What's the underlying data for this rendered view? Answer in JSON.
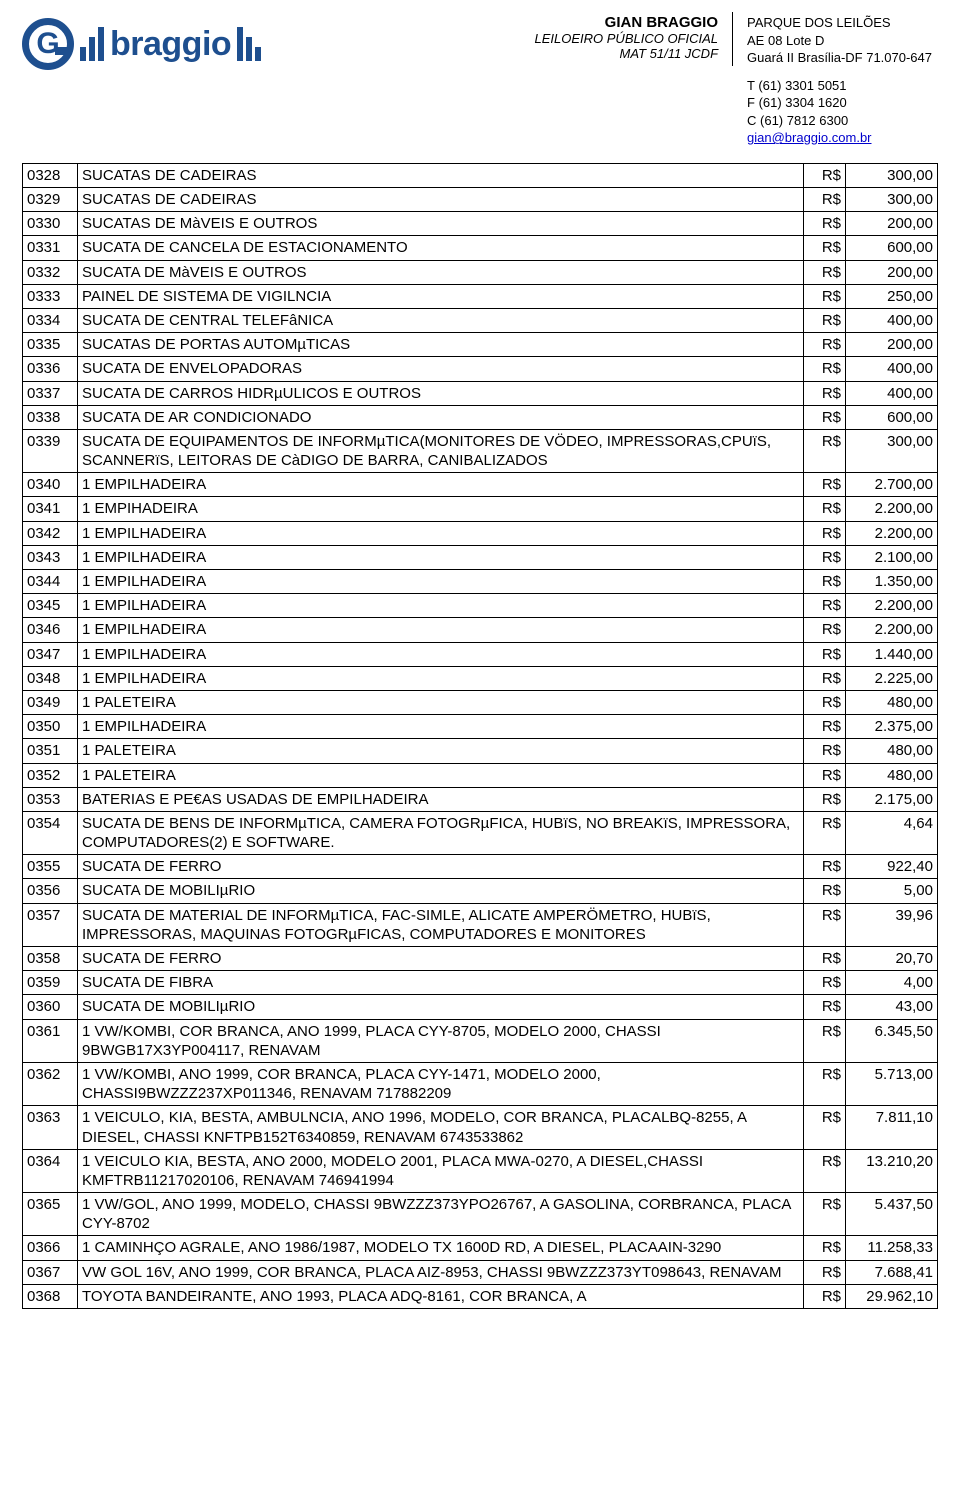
{
  "header": {
    "logo_text": "braggio",
    "center": {
      "l1": "GIAN BRAGGIO",
      "l2": "LEILOEIRO PÚBLICO OFICIAL",
      "l3": "MAT  51/11  JCDF"
    },
    "right": {
      "addr1": "PARQUE DOS LEILÕES",
      "addr2": "AE 08 Lote D",
      "addr3": "Guará II Brasília-DF 71.070-647",
      "tel": "T (61) 3301 5051",
      "fax": "F (61) 3304 1620",
      "cel": "C (61) 7812 6300",
      "email": "gian@braggio.com.br"
    }
  },
  "table": {
    "currency": "R$",
    "rows": [
      {
        "code": "0328",
        "desc": "SUCATAS DE CADEIRAS",
        "val": "300,00"
      },
      {
        "code": "0329",
        "desc": "SUCATAS DE CADEIRAS",
        "val": "300,00"
      },
      {
        "code": "0330",
        "desc": "SUCATAS DE MàVEIS E OUTROS",
        "val": "200,00"
      },
      {
        "code": "0331",
        "desc": "SUCATA DE CANCELA DE ESTACIONAMENTO",
        "val": "600,00"
      },
      {
        "code": "0332",
        "desc": "SUCATA DE MàVEIS E OUTROS",
        "val": "200,00"
      },
      {
        "code": "0333",
        "desc": "PAINEL DE SISTEMA DE VIGILNCIA",
        "val": "250,00"
      },
      {
        "code": "0334",
        "desc": "SUCATA DE CENTRAL TELEFâNICA",
        "val": "400,00"
      },
      {
        "code": "0335",
        "desc": "SUCATAS DE PORTAS AUTOMµTICAS",
        "val": "200,00"
      },
      {
        "code": "0336",
        "desc": "SUCATA DE ENVELOPADORAS",
        "val": "400,00"
      },
      {
        "code": "0337",
        "desc": "SUCATA DE CARROS HIDRµULICOS E OUTROS",
        "val": "400,00"
      },
      {
        "code": "0338",
        "desc": "SUCATA DE AR CONDICIONADO",
        "val": "600,00"
      },
      {
        "code": "0339",
        "desc": "SUCATA DE EQUIPAMENTOS DE INFORMµTICA(MONITORES DE VÖDEO, IMPRESSORAS,CPUïS, SCANNERïS, LEITORAS DE CàDIGO DE BARRA, CANIBALIZADOS",
        "val": "300,00"
      },
      {
        "code": "0340",
        "desc": "1 EMPILHADEIRA",
        "val": "2.700,00"
      },
      {
        "code": "0341",
        "desc": "1 EMPIHADEIRA",
        "val": "2.200,00"
      },
      {
        "code": "0342",
        "desc": "1 EMPILHADEIRA",
        "val": "2.200,00"
      },
      {
        "code": "0343",
        "desc": "1 EMPILHADEIRA",
        "val": "2.100,00"
      },
      {
        "code": "0344",
        "desc": "1 EMPILHADEIRA",
        "val": "1.350,00"
      },
      {
        "code": "0345",
        "desc": "1 EMPILHADEIRA",
        "val": "2.200,00"
      },
      {
        "code": "0346",
        "desc": "1 EMPILHADEIRA",
        "val": "2.200,00"
      },
      {
        "code": "0347",
        "desc": "1 EMPILHADEIRA",
        "val": "1.440,00"
      },
      {
        "code": "0348",
        "desc": "1 EMPILHADEIRA",
        "val": "2.225,00"
      },
      {
        "code": "0349",
        "desc": "1 PALETEIRA",
        "val": "480,00"
      },
      {
        "code": "0350",
        "desc": "1 EMPILHADEIRA",
        "val": "2.375,00"
      },
      {
        "code": "0351",
        "desc": "1 PALETEIRA",
        "val": "480,00"
      },
      {
        "code": "0352",
        "desc": "1 PALETEIRA",
        "val": "480,00"
      },
      {
        "code": "0353",
        "desc": "BATERIAS E PE€AS USADAS DE EMPILHADEIRA",
        "val": "2.175,00"
      },
      {
        "code": "0354",
        "desc": "SUCATA DE BENS DE INFORMµTICA, CAMERA FOTOGRµFICA, HUBïS, NO BREAKïS, IMPRESSORA, COMPUTADORES(2) E SOFTWARE.",
        "val": "4,64"
      },
      {
        "code": "0355",
        "desc": "SUCATA DE FERRO",
        "val": "922,40"
      },
      {
        "code": "0356",
        "desc": "SUCATA DE MOBILIµRIO",
        "val": "5,00"
      },
      {
        "code": "0357",
        "desc": "SUCATA DE MATERIAL DE INFORMµTICA, FAC-SIMLE, ALICATE AMPERÖMETRO, HUBïS, IMPRESSORAS, MAQUINAS FOTOGRµFICAS, COMPUTADORES E MONITORES",
        "val": "39,96"
      },
      {
        "code": "0358",
        "desc": "SUCATA DE FERRO",
        "val": "20,70"
      },
      {
        "code": "0359",
        "desc": "SUCATA DE FIBRA",
        "val": "4,00"
      },
      {
        "code": "0360",
        "desc": "SUCATA DE MOBILIµRIO",
        "val": "43,00"
      },
      {
        "code": "0361",
        "desc": "1 VW/KOMBI, COR BRANCA, ANO 1999, PLACA CYY-8705, MODELO 2000, CHASSI 9BWGB17X3YP004117, RENAVAM",
        "val": "6.345,50"
      },
      {
        "code": "0362",
        "desc": "1 VW/KOMBI, ANO 1999, COR BRANCA, PLACA CYY-1471, MODELO 2000, CHASSI9BWZZZ237XP011346, RENAVAM 717882209",
        "val": "5.713,00"
      },
      {
        "code": "0363",
        "desc": "1 VEICULO, KIA, BESTA, AMBULNCIA, ANO 1996, MODELO, COR BRANCA, PLACALBQ-8255, A DIESEL, CHASSI KNFTPB152T6340859, RENAVAM 6743533862",
        "val": "7.811,10"
      },
      {
        "code": "0364",
        "desc": "1 VEICULO KIA, BESTA, ANO 2000, MODELO 2001, PLACA MWA-0270, A DIESEL,CHASSI KMFTRB11217020106, RENAVAM 746941994",
        "val": "13.210,20"
      },
      {
        "code": "0365",
        "desc": "1 VW/GOL, ANO 1999, MODELO, CHASSI 9BWZZZ373YPO26767, A GASOLINA, CORBRANCA, PLACA CYY-8702",
        "val": "5.437,50"
      },
      {
        "code": "0366",
        "desc": "1 CAMINHÇO AGRALE, ANO 1986/1987, MODELO TX 1600D RD, A DIESEL, PLACAAIN-3290",
        "val": "11.258,33"
      },
      {
        "code": "0367",
        "desc": "VW GOL 16V, ANO 1999, COR BRANCA, PLACA AIZ-8953, CHASSI 9BWZZZ373YT098643, RENAVAM",
        "val": "7.688,41"
      },
      {
        "code": "0368",
        "desc": "TOYOTA BANDEIRANTE, ANO 1993, PLACA ADQ-8161, COR BRANCA, A",
        "val": "29.962,10"
      }
    ]
  }
}
